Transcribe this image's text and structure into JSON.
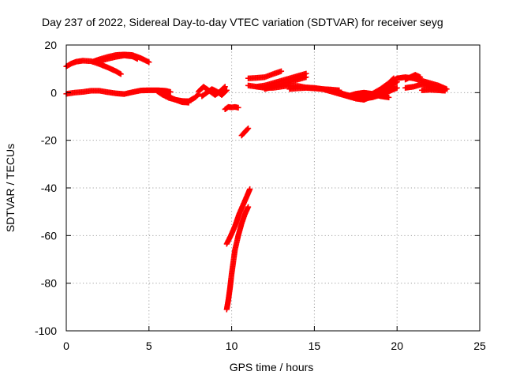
{
  "chart_data": {
    "type": "scatter",
    "title": "Day 237 of 2022, Sidereal Day-to-day VTEC variation (SDTVAR) for receiver seyg",
    "xlabel": "GPS time / hours",
    "ylabel": "SDTVAR / TECUs",
    "xlim": [
      0,
      25
    ],
    "ylim": [
      -100,
      20
    ],
    "xticks": [
      "0",
      "5",
      "10",
      "15",
      "20",
      "25"
    ],
    "yticks": [
      "20",
      "0",
      "-20",
      "-40",
      "-60",
      "-80",
      "-100"
    ],
    "grid": true,
    "marker": "plus",
    "color": "#ff0000",
    "series": [
      {
        "x": [
          0.0,
          0.3,
          0.6,
          1.0,
          1.5,
          2.0,
          2.5,
          3.0,
          3.3
        ],
        "y": [
          11.0,
          12.2,
          13.0,
          13.4,
          13.2,
          12.0,
          10.6,
          9.0,
          7.8
        ]
      },
      {
        "x": [
          1.6,
          2.0,
          2.5,
          3.0,
          3.5,
          4.0,
          4.5,
          5.0
        ],
        "y": [
          13.0,
          14.0,
          15.0,
          15.8,
          16.0,
          15.8,
          14.5,
          12.8
        ]
      },
      {
        "x": [
          2.0,
          2.5,
          3.0,
          3.5,
          4.0,
          4.3
        ],
        "y": [
          13.2,
          14.2,
          15.0,
          15.6,
          15.2,
          14.2
        ]
      },
      {
        "x": [
          0.0,
          0.5,
          1.0,
          1.5,
          2.0,
          2.5,
          3.0,
          3.5,
          4.0,
          4.5,
          5.0,
          5.5,
          6.0,
          6.3
        ],
        "y": [
          -0.5,
          0.0,
          0.3,
          0.8,
          0.8,
          0.2,
          -0.3,
          -0.6,
          0.2,
          0.9,
          1.0,
          1.0,
          0.8,
          0.3
        ]
      },
      {
        "x": [
          5.5,
          5.8,
          6.2,
          6.6,
          7.0,
          7.4,
          7.8,
          8.0
        ],
        "y": [
          0.6,
          -0.8,
          -2.2,
          -3.0,
          -3.5,
          -3.6,
          -2.0,
          -0.6
        ]
      },
      {
        "x": [
          6.0,
          6.3,
          6.6,
          7.0,
          7.4
        ],
        "y": [
          -0.8,
          -2.0,
          -3.0,
          -4.0,
          -4.2
        ]
      },
      {
        "x": [
          8.0,
          8.3,
          8.6,
          9.0,
          9.3,
          9.6
        ],
        "y": [
          0.5,
          2.5,
          1.0,
          -1.0,
          0.5,
          2.5
        ]
      },
      {
        "x": [
          8.2,
          8.5,
          8.8,
          9.1,
          9.4,
          9.7
        ],
        "y": [
          -1.5,
          0.0,
          1.5,
          0.5,
          -1.0,
          1.0
        ]
      },
      {
        "x": [
          9.6,
          9.8,
          10.0,
          10.2,
          10.4
        ],
        "y": [
          -7.0,
          -6.0,
          -6.2,
          -6.0,
          -6.3
        ]
      },
      {
        "x": [
          10.6,
          10.8,
          11.0
        ],
        "y": [
          -18.0,
          -16.5,
          -15.0
        ]
      },
      {
        "x": [
          9.7,
          9.8,
          9.9,
          10.0,
          10.1,
          10.2,
          10.4,
          10.6,
          10.8,
          11.0
        ],
        "y": [
          -91.0,
          -87.0,
          -82.0,
          -76.0,
          -71.0,
          -66.0,
          -60.0,
          -55.0,
          -51.0,
          -48.0
        ]
      },
      {
        "x": [
          9.7,
          9.95,
          10.2,
          10.45,
          10.7,
          10.95,
          11.1
        ],
        "y": [
          -63.5,
          -60.0,
          -56.0,
          -51.0,
          -47.0,
          -43.0,
          -40.5
        ]
      },
      {
        "x": [
          11.0,
          11.5,
          12.0,
          12.5,
          13.0,
          13.5,
          14.0,
          14.5,
          15.0,
          15.5,
          16.0,
          16.5,
          17.0,
          17.5,
          18.0
        ],
        "y": [
          3.0,
          2.5,
          2.0,
          2.0,
          2.5,
          3.0,
          2.8,
          2.2,
          2.0,
          1.5,
          0.5,
          -0.5,
          -1.5,
          -2.5,
          -3.0
        ]
      },
      {
        "x": [
          11.0,
          11.5,
          12.0,
          12.5,
          13.0
        ],
        "y": [
          6.0,
          6.2,
          6.5,
          7.8,
          9.0
        ]
      },
      {
        "x": [
          11.5,
          12.0,
          12.5,
          13.0,
          13.5,
          14.0,
          14.5
        ],
        "y": [
          2.5,
          3.0,
          4.0,
          5.0,
          6.0,
          7.0,
          8.0
        ]
      },
      {
        "x": [
          12.0,
          12.5,
          13.0,
          13.5,
          14.0,
          14.5
        ],
        "y": [
          1.5,
          2.5,
          3.5,
          4.5,
          5.5,
          6.5
        ]
      },
      {
        "x": [
          13.5,
          14.0,
          14.5,
          15.0,
          15.5,
          16.0,
          16.5
        ],
        "y": [
          1.5,
          1.8,
          2.0,
          1.8,
          1.5,
          1.3,
          1.0
        ]
      },
      {
        "x": [
          16.5,
          17.0,
          17.5,
          18.0,
          18.5,
          19.0,
          19.5,
          20.0
        ],
        "y": [
          0.0,
          -1.0,
          -2.0,
          -2.5,
          -2.0,
          -1.0,
          0.5,
          2.0
        ]
      },
      {
        "x": [
          17.0,
          17.5,
          18.0,
          18.5,
          19.0,
          19.5
        ],
        "y": [
          -1.5,
          -0.5,
          0.0,
          -0.5,
          -1.5,
          -2.0
        ]
      },
      {
        "x": [
          17.5,
          18.0,
          18.5,
          19.0,
          19.5,
          19.8
        ],
        "y": [
          -2.5,
          -2.0,
          -0.5,
          1.5,
          4.0,
          6.0
        ]
      },
      {
        "x": [
          18.0,
          18.5,
          19.0,
          19.5,
          20.0
        ],
        "y": [
          -3.0,
          -1.5,
          0.5,
          2.5,
          4.5
        ]
      },
      {
        "x": [
          19.5,
          20.0,
          20.5,
          21.0,
          21.5,
          22.0,
          22.5,
          23.0
        ],
        "y": [
          4.0,
          6.0,
          6.5,
          6.0,
          5.0,
          4.0,
          3.0,
          1.5
        ]
      },
      {
        "x": [
          20.5,
          21.0,
          21.5,
          22.0,
          22.5,
          22.9
        ],
        "y": [
          2.0,
          2.5,
          3.5,
          2.5,
          1.8,
          1.2
        ]
      },
      {
        "x": [
          20.5,
          20.8,
          21.1,
          21.4
        ],
        "y": [
          5.5,
          6.5,
          7.5,
          6.5
        ]
      },
      {
        "x": [
          21.5,
          22.0,
          22.5,
          22.9
        ],
        "y": [
          1.0,
          1.2,
          1.0,
          0.8
        ]
      }
    ]
  }
}
